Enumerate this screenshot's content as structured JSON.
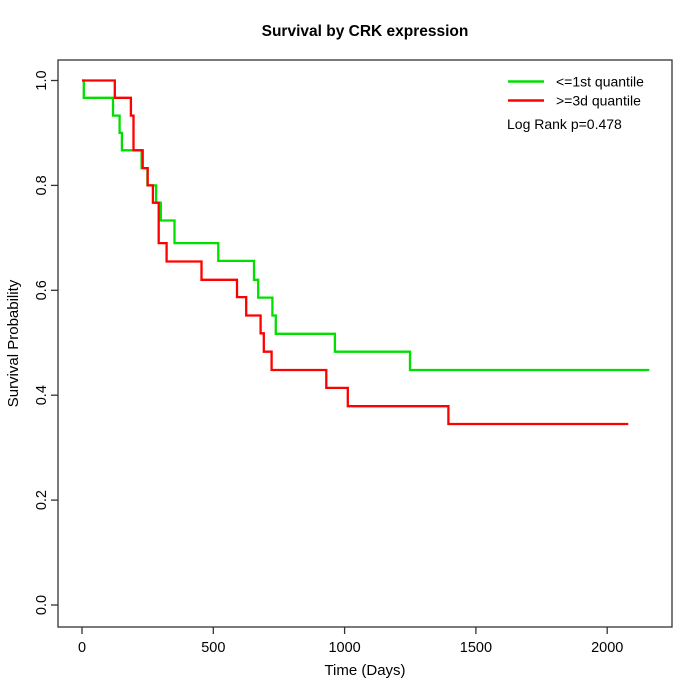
{
  "page": {
    "background": "#ffffff"
  },
  "chart_data": {
    "type": "line",
    "subtype": "kaplan_meier_step_curve",
    "title": "Survival by CRK expression",
    "xlabel": "Time (Days)",
    "ylabel": "Survival Probability",
    "xlim": [
      -90,
      2250
    ],
    "ylim": [
      -0.04,
      1.04
    ],
    "grid": false,
    "legend_position": "top-right",
    "x_ticks": [
      0,
      500,
      1000,
      1500,
      2000
    ],
    "x_tick_labels": [
      "0",
      "500",
      "1000",
      "1500",
      "2000"
    ],
    "y_ticks": [
      0.0,
      0.2,
      0.4,
      0.6,
      0.8,
      1.0
    ],
    "y_tick_labels": [
      "0.0",
      "0.2",
      "0.4",
      "0.6",
      "0.8",
      "1.0"
    ],
    "annotation": "Log Rank p=0.478",
    "axis_color": "#333333",
    "text_color": "#000000",
    "series": [
      {
        "name": "<=1st quantile",
        "color": "#00e000",
        "end_time": 2160,
        "points": [
          [
            0,
            1.0
          ],
          [
            7,
            0.967
          ],
          [
            118,
            0.933
          ],
          [
            143,
            0.9
          ],
          [
            152,
            0.867
          ],
          [
            227,
            0.833
          ],
          [
            249,
            0.8
          ],
          [
            282,
            0.767
          ],
          [
            300,
            0.733
          ],
          [
            352,
            0.69
          ],
          [
            519,
            0.656
          ],
          [
            655,
            0.62
          ],
          [
            671,
            0.586
          ],
          [
            725,
            0.552
          ],
          [
            738,
            0.517
          ],
          [
            963,
            0.483
          ],
          [
            1249,
            0.448
          ]
        ]
      },
      {
        "name": ">=3d quantile",
        "color": "#ff0000",
        "end_time": 2080,
        "points": [
          [
            0,
            1.0
          ],
          [
            125,
            0.967
          ],
          [
            186,
            0.933
          ],
          [
            196,
            0.867
          ],
          [
            231,
            0.833
          ],
          [
            250,
            0.8
          ],
          [
            270,
            0.767
          ],
          [
            292,
            0.69
          ],
          [
            322,
            0.655
          ],
          [
            455,
            0.62
          ],
          [
            590,
            0.587
          ],
          [
            625,
            0.552
          ],
          [
            680,
            0.518
          ],
          [
            692,
            0.483
          ],
          [
            722,
            0.448
          ],
          [
            930,
            0.414
          ],
          [
            1012,
            0.379
          ],
          [
            1395,
            0.345
          ]
        ]
      }
    ]
  }
}
